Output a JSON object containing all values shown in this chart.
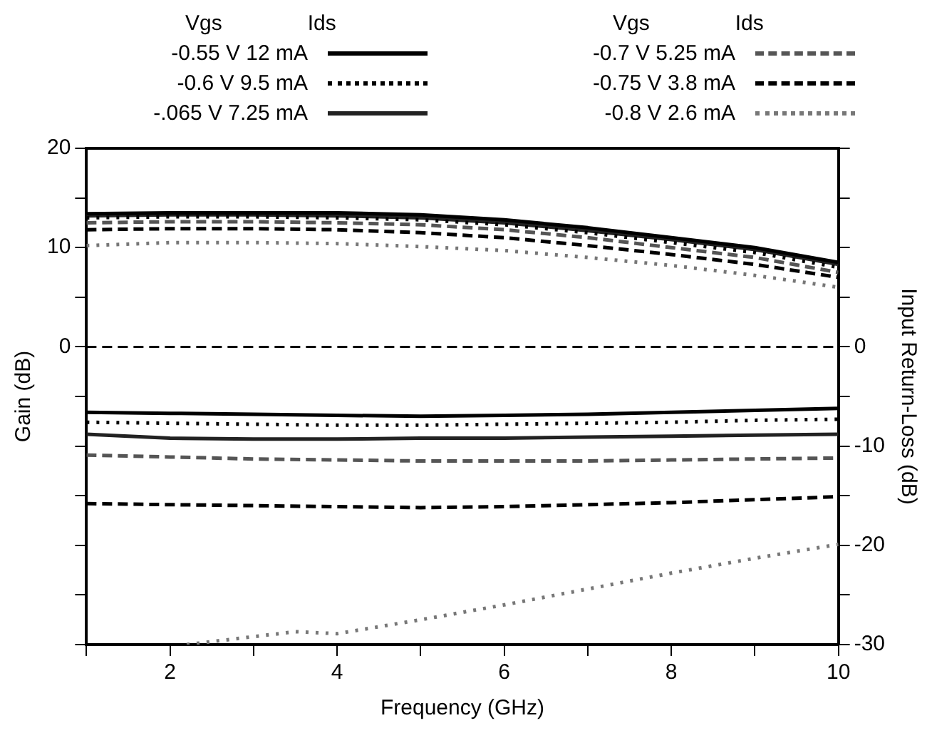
{
  "chart_data": {
    "type": "line",
    "xlabel": "Frequency (GHz)",
    "ylabel": "Gain (dB)",
    "y2label": "Input Return-Loss (dB)",
    "x": [
      1,
      2,
      3,
      4,
      5,
      6,
      7,
      8,
      9,
      10
    ],
    "xlim": [
      1,
      10
    ],
    "xticks": [
      {
        "value": 1,
        "label": null
      },
      2,
      {
        "value": 3,
        "label": null
      },
      4,
      {
        "value": 5,
        "label": null
      },
      6,
      {
        "value": 7,
        "label": null
      },
      8,
      {
        "value": 9,
        "label": null
      },
      10
    ],
    "ylim": [
      -30,
      20
    ],
    "yticks": [
      20,
      {
        "value": 15,
        "label": null
      },
      10,
      {
        "value": 5,
        "label": null
      },
      0,
      {
        "value": -5,
        "label": null
      },
      {
        "value": -10,
        "label": null
      },
      {
        "value": -15,
        "label": null
      },
      {
        "value": -20,
        "label": null
      },
      {
        "value": -25,
        "label": null
      },
      {
        "value": -30,
        "label": null
      }
    ],
    "y2lim": [
      -30,
      20
    ],
    "y2ticks": [
      {
        "value": 20,
        "label": null
      },
      {
        "value": 15,
        "label": null
      },
      {
        "value": 10,
        "label": null
      },
      {
        "value": 5,
        "label": null
      },
      0,
      {
        "value": -5,
        "label": null
      },
      -10,
      {
        "value": -15,
        "label": null
      },
      -20,
      {
        "value": -25,
        "label": null
      },
      -30
    ],
    "grid": false,
    "legend": "top",
    "marker": "none",
    "annotations": [
      "Vgs",
      "Ids",
      "Vgs",
      "Ids"
    ],
    "ref_lines": [
      {
        "axis": "y",
        "value": 0,
        "label": null,
        "color": "#000000",
        "line_style": "dashed"
      }
    ],
    "series": [
      {
        "name": "-0.55 V 12 mA",
        "color": "#000000",
        "line_style": "solid",
        "values": [
          13.4,
          13.5,
          13.5,
          13.5,
          13.3,
          12.8,
          12.0,
          11.0,
          10.0,
          8.5
        ]
      },
      {
        "name": "-0.6 V 9.5 mA",
        "color": "#000000",
        "line_style": "dotted",
        "values": [
          13.0,
          13.1,
          13.1,
          13.0,
          12.8,
          12.3,
          11.5,
          10.5,
          9.5,
          8.0
        ]
      },
      {
        "name": "-.065 V 7.25 mA",
        "color": "#222222",
        "line_style": "solid",
        "values": [
          13.2,
          13.3,
          13.3,
          13.2,
          13.0,
          12.5,
          11.7,
          10.8,
          9.8,
          8.3
        ]
      },
      {
        "name": "-0.7 V 5.25 mA",
        "color": "#555555",
        "line_style": "dashed",
        "values": [
          12.5,
          12.6,
          12.6,
          12.5,
          12.3,
          11.8,
          11.0,
          10.0,
          9.0,
          7.5
        ]
      },
      {
        "name": "-0.75 V 3.8 mA",
        "color": "#000000",
        "line_style": "dashed",
        "values": [
          11.8,
          11.9,
          11.9,
          11.8,
          11.5,
          11.0,
          10.2,
          9.3,
          8.3,
          7.0
        ]
      },
      {
        "name": "-0.8 V 2.6 mA",
        "color": "#777777",
        "line_style": "dotted",
        "values": [
          10.2,
          10.5,
          10.5,
          10.4,
          10.1,
          9.7,
          9.0,
          8.2,
          7.2,
          6.0
        ]
      },
      {
        "color": "#000000",
        "line_style": "solid",
        "values": [
          -6.6,
          -6.7,
          -6.8,
          -6.9,
          -7.0,
          -6.9,
          -6.8,
          -6.6,
          -6.4,
          -6.2
        ]
      },
      {
        "color": "#000000",
        "line_style": "dotted",
        "values": [
          -7.6,
          -7.7,
          -7.8,
          -7.9,
          -7.9,
          -7.8,
          -7.7,
          -7.6,
          -7.4,
          -7.3
        ]
      },
      {
        "color": "#222222",
        "line_style": "solid",
        "values": [
          -8.8,
          -9.2,
          -9.3,
          -9.3,
          -9.2,
          -9.2,
          -9.1,
          -9.0,
          -8.9,
          -8.8
        ]
      },
      {
        "color": "#555555",
        "line_style": "dashed",
        "values": [
          -10.9,
          -11.1,
          -11.3,
          -11.4,
          -11.5,
          -11.5,
          -11.5,
          -11.4,
          -11.3,
          -11.2
        ]
      },
      {
        "color": "#000000",
        "line_style": "dashed",
        "values": [
          -15.8,
          -15.9,
          -16.0,
          -16.1,
          -16.2,
          -16.1,
          -15.9,
          -15.7,
          -15.4,
          -15.1
        ]
      },
      {
        "color": "#777777",
        "line_style": "dotted",
        "x": [
          2.2,
          3,
          3.5,
          4,
          5,
          6,
          7,
          8,
          9,
          10
        ],
        "values": [
          -30,
          -29.2,
          -28.7,
          -28.9,
          -27.5,
          -26,
          -24.4,
          -22.8,
          -21.3,
          -19.9
        ]
      }
    ]
  }
}
